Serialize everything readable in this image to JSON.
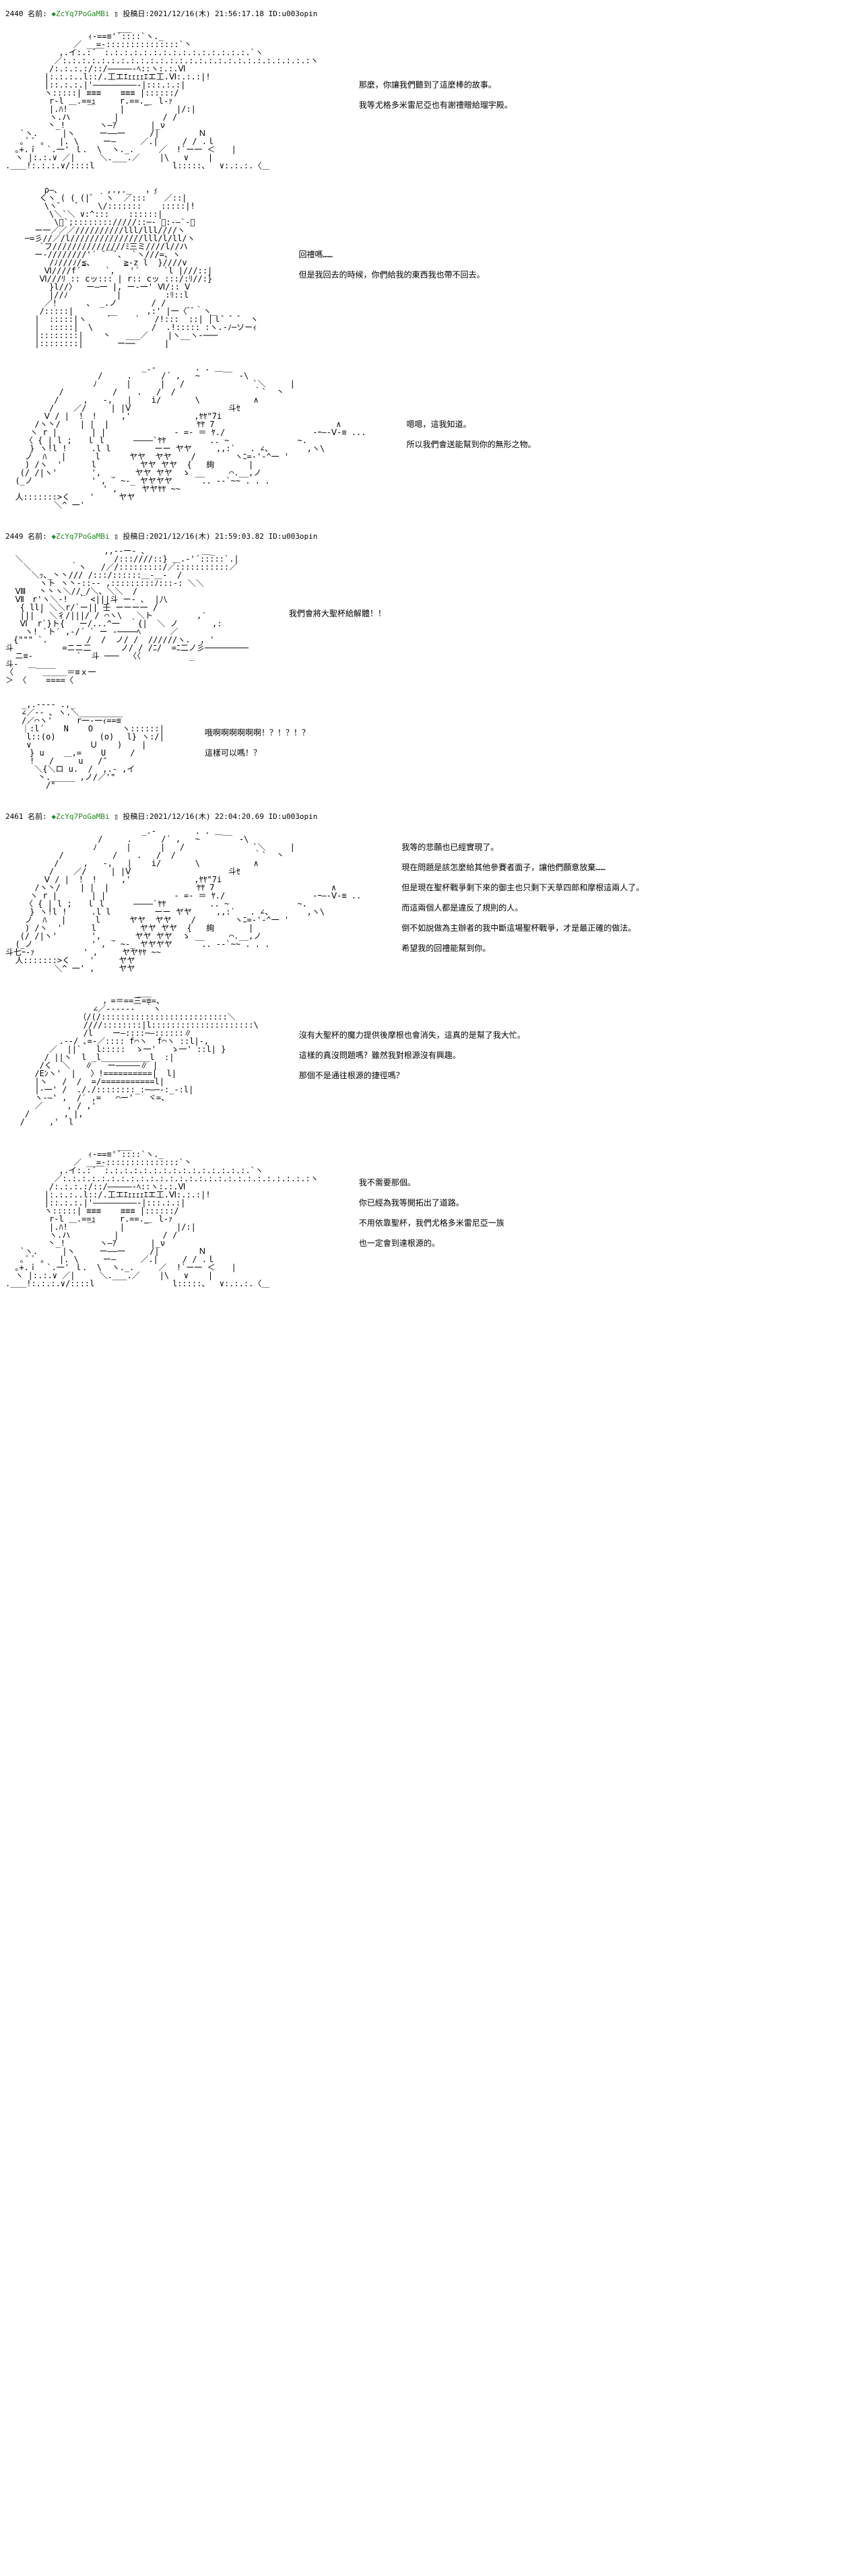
{
  "posts": [
    {
      "num": "2440",
      "name_label": "名前:",
      "trip": "◆ZcYq7PoGaMBi",
      "date_label": "投稿日:",
      "date": "2021/12/16(木) 21:56:17.18",
      "id_label": "ID:",
      "id": "u003opin"
    },
    {
      "num": "2449",
      "name_label": "名前:",
      "trip": "◆ZcYq7PoGaMBi",
      "date_label": "投稿日:",
      "date": "2021/12/16(木) 21:59:03.82",
      "id_label": "ID:",
      "id": "u003opin"
    },
    {
      "num": "2461",
      "name_label": "名前:",
      "trip": "◆ZcYq7PoGaMBi",
      "date_label": "投稿日:",
      "date": "2021/12/16(木) 22:04:20.69",
      "id_label": "ID:",
      "id": "u003opin"
    }
  ],
  "dialogues": {
    "d1": {
      "l1": "那麼，你讓我們聽到了這麼棒的故事。",
      "l2": "我等尤格多米雷尼亞也有謝禮贈給瑠宇殿。"
    },
    "d2": {
      "l1": "回禮嗎……",
      "l2": "但是我回去的時候，你們給我的東西我也帶不回去。"
    },
    "d3": {
      "l1": "嗯嗯，這我知道。",
      "l2": "所以我們會送能幫到你的無形之物。"
    },
    "d4": {
      "l1": "我們會將大聖杯給解體！！"
    },
    "d5": {
      "l1": "哦啊啊啊啊啊啊！？！？！？",
      "l2": "這樣可以嗎！？"
    },
    "d6": {
      "l1": "我等的悲願也已經實現了。",
      "l2": "現在問題是該怎麼給其他參賽者面子，讓他們願意放棄……",
      "l3": "但是現在聖杯戰爭剩下來的御主也只剩下天草四郎和摩根這兩人了。",
      "l4": "而這兩個人都是違反了規則的人。",
      "l5": "倒不如說做為主辦者的我中斷這場聖杯戰爭，才是最正確的做法。",
      "l6": "希望我的回禮能幫到你。"
    },
    "d7": {
      "l1": "沒有大聖杯的魔力提供後摩根也會消失，這真的是幫了我大忙。",
      "l2": "這樣的真沒問題嗎？雖然我對根源沒有興趣。",
      "l3": "那個不是通往根源的捷徑嗎？"
    },
    "d8": {
      "l1": "我不需要那個。",
      "l2": "你已經為我等開拓出了道路。",
      "l3": "不用依靠聖杯，我們尤格多米雷尼亞一族",
      "l4": "也一定會到達根源的。"
    }
  },
  "aa": {
    "dalnic1": "                       ___\n                 ｨ-==≡'´::::`ヽ._\n              ／ __=-:::::::::::::::`丶\n           ,.イ:.:´￣:.:.:.:.:.:.:.:.:.:.:.:.:.:.:.`ヽ\n          ／:.:.:.:.:.:.:.:.:.:.:.:.:.:.:.:.:.:.:.:.:.:.:.:.:.:ヽ\n         /:.:.:.:/::/―――――‐ﾍ::ヽ:.:.Ⅵ\n        |:.:.:..l::/.工エｴｪｪｪｪｴエ工.Ⅵ:.:.:|!\n        |::.:.:.|'―――――――――‐|:::.:.:|\n        ヽ:::::| ≡≡≡    ≡≡≡ |::::::/\n         r‐l ＿.==ｭ     r.==._  l‐ｧ\n         |.ﾊ!    ￣     |    ￣     |/:|\n         ヽ.ハ         |         / /\n   　    丶_!       ヽ―ｱ       |_ν\n   `ヽ.     |ヽ     ー――一     /|        Ｎ\n   ｡ ﾞ ﾞ ｡   |. \\     ー―     ／.|     / / .ｌ\n  ｡+.ｉ  `.一' ｌ.  \\  ヽ._.     ／  !`ー一 ＜　　|\n  ヽ |:.:.∨ ／|     ＼.___.／    |\\   ∨    |\n.＿＿!:.:.:.∨/::::l                l:::::、  ∨:.:.:.〈＿",
    "ruu1": "        ρ―､          ,.,._   ，ｨ\n       くヽ ( ( (|゛｀ヽ  ／::: ｀ ／::|\n        \\ヽ゛  ゛   \\/:::::::    :::::|!\n         \\＼`＼ ∨:^:::    ::::::|\n          \\ﾞ`;:::::::://///::─- ､:-―`-＼\n      ー一／／／//////////lll/lll////ヽ\n    ─=彡//／/l///////////////lll/l/ll/ヽ\n       `フ///////////////ﾐ三ミ////l//ハ\n      ー-////////'´ ̄ ￣ﾞ､  `ヽ///=、ヽ\n         /ﾉ///ﾉ/≦、      ≧-z l  }////v\n        Ⅵ////f´     `,   '´     `l |///::|\n       Ⅵ///ﾘ :: cッ::: | r:: cッ :::/:ﾘ//:}\n         }l//〉  ー―一 |, ー-一' Ⅵ/:: Ⅴ\n         |//ﾉ          |         :ﾘ::l\n        ／!      、 _.ノ       / /\n       /:::::|       __      ,:' |一〈ﾞﾞ｀ヽ_\n      |  :::::|ヽ    ´     `   /!:::  ::| │ｌ゛゛゛ ヽ\n      |  :::::|  \\            /  .!::::: :ヽ.-ﾉ─ソーｨ\n      |::::::::|    丶   ___／    |ヽ__ヽ-───\n      |::::::::|       ー──      |",
    "dalnic2": "                            _.-        . . ＿__\n                   /     .      /´ ,   ~        -\\\n                  ﾉ      |      |   /              `＼     |\n           /          /    .   /  /                ｀`  丶\n          /     ,   -,   |    i/       \\           ∧\n         /    ／/     | |Ⅴ                    斗ｾ\n        Ⅴ / |  ！ !     ,'             ,ﾔﾔ\"7i\n      /ヽ丶/    | |  |                  ﾔﾔ 7                         ∧\n     ヽ r |       | |              - =- ＝ ﾔ./                  -ｰ―-Ⅴ-≡ ...\n    〈 { | l ;   ｌ l      ――――`ﾔﾔ         .. ~              ~.\n     } ヽ!l !     .l l         ーー ヤヤ     ,,:`   . ∠、       ,ヽ\\\n    ノ  ﾊ   |      l      ヤヤ  ヤヤ    /        ヽﾆ=-'-^一 '\n    ) /ヽ  '      l         ヤヤ ヤヤ  {   絢       |\n   (/ /|ヽ'       ',  _    ヤヤ ヤヤ  ゝ __     ⌒.__,ノ\n  (_ノ            ' , ´ ~-_ ヤヤヤヤ      .. --`~~ . . .\n                    ' ,     ヤヤﾔﾔ ~~\n  人:::::::>く    '     ヤヤ\n          ＼^ 一'",
    "dalnic3": "  　　　　　　　　　　　,,--ー- ､　　　　　　　＿_\n  ＼　                 /:::////::} ＿.-'´:::::`.|\n  　＼        ｀ヽ   /／/:::::::::/／:::::::::::／\n  　　＼ｯ､_丶丶/// /:::/::::::＿-＿-  /\n  　　　ヽト ヽ丶-::-- ,:::::::::ﾉ:::-: ＼＼\n  Ⅷ　 丶丶ヽ＼//_/＼、＼＼  /\n  Ⅶ　r'ヽ＼-!  ｀ <|||斗 ー- ､  |八\n   { ll| ＼＼r/`ー|| 壬 ーーー一 /\n   ||| ` ＼彳/|||/ / ⌒ヽ\\   ＼ト         ,′\n   Ⅵ  r`}ト{   ー/...^一  ｀{|  ＼ ノ       ,:\n    ヽ! `ト′ ,-/´ ` ー -────ﾍ      ／\n　{\"\"\" `.        /  /  ノ/ /  //////ヽ.  , '\n斗          =ニニ二      ノ/ / /ﾆ/  =ﾆ二ノ彡─────────\n  ニ≡-         `  斗 ───  〈〈          _\n斗‐  ＿____\n〈      ＿＿＿＝≡ｘ一\n＞ 〈    ====〈",
    "ruu2": "　　_,.---- .,_\n　　∠／-- ､ ヽ.＼_________\n　　/／⌒ヽ'     r一-一ｨ==≡\n　　｜:l´    N    O      ヽ::::::|\n　　 l::(o)         (o)　 l} ヽ:/|\n　　 ∨            Ｕ    )    |\n　　　} u    ＿,=    U     /\n　　　!   /     u   /″\n　　　 ＼{＼ロ u.  /  ,.- ,イ\n　　　　丶._____ ,ノ/／'\"\n　　　　　/\"",
    "dalnic4": "                            _.-        . . ＿__\n                   /     .      /´ ,   ~        -\\\n                  ﾉ      |      |   /              `＼     |\n           /          /    .   /  /                ｀`  丶\n          /     ,   -,   |    i/       \\           ∧\n         /    ／/     | |Ⅴ                    斗ｾ\n        Ⅴ / |  ！ !     ,'             ,ﾔﾔ\"7i\n      /ヽ丶/    | |  |                  ﾔﾔ 7                        ∧\n     ヽ r |       | |              - =- ＝ ﾔ./                  -ｰ―-Ⅴ-≡ ..\n    〈 { | l ;   ｌ l      ――――`ﾔﾔ         .. ~              ~.\n     } ヽ!l !     .l l         ーー ヤヤ     ,,:`   . ∠、       ,ヽ\\\n    ノ  ﾊ   |      l      ヤヤ  ヤヤ    /        ヽﾆ=-'-^一 '\n    ) /ヽ  '      l         ヤヤ ヤヤ  {   絢       |\n   (/ /|ヽ'       ',  _    ヤヤ ヤヤ  ゝ __     ⌒.__,ノ\n  (_ノ            ' , ´ ~-_ ヤヤヤヤ      .. --`~~ . . .\n斗七ｰ-ｧ          ' ,     ヤヤﾔﾔ ~~\n  人:::::::>く    '     ヤヤ\n          ＼^ 一' ,     ヤヤ",
    "ruu3": "                           ___\n                    ，=＝==三=≡=、\n                  ∠／------  ｀ヽ\n               （/(/::::::::::::::::::::::::::＼\n                ////::::::::|l:::::::::::::::::::::\\\n                /l    ー―::::─―::::::∥\n           .--/ ､=-／:::: f⌒ヽ  f⌒ヽ ::l|-,\n         ／  ||`   l:::::  ゝ一'   ゝ一' ::l| }\n        / ||ヽ  l _l__________l  :|\n       /く  ＼   ∥   ー―――――∥ |\n      /Eﾝヽ'  |   〉!==========|  l|\n      |ヽ   /  /  =/===========l|\n      |-一' /  ././::::::::_:─―─‐:_-:l|\n      ヽ-―' ,  /′ ,=   ⌒ー'   ヾ=、\n      ／     , / ,'\n    /       , |,\n   /     ,'  l",
    "dalnic5": "                       ___\n                 ｨ-==≡'´::::`ヽ._\n              ／ __=-:::::::::::::::`丶\n           ,.イ:.:´￣:.:.:.:.:.:.:.:.:.:.:.:.:.:.:.`ヽ\n          ／:.:.:.:.:.:.:.:.:.:.:.:.:.:.:.:.:.:.:.:.:.:.:.:.:.:ヽ\n         /:.:.:.:/::/―――――‐ﾍ::ヽ:.:.Ⅵ\n        |:.:.:..l::/.工エｴｪｪｪｪｴエ工.Ⅵ:.:.:|!\n        |::.:.:.|'―――――――――‐|:::.:.:|\n        ヽ:::::| ≡≡≡    ≡≡≡ |::::::/\n         r‐l ＿.==ｭ     r.==._  l‐ｧ\n         |.ﾊ!    ￣     |    ￣     |/:|\n         ヽ.ハ         |         / /\n   　    丶_!       ヽ―ｱ       |_ν\n   `ヽ.     |ヽ     ー――一     /|        Ｎ\n   ｡ ﾞ ﾞ ｡   |. \\     ー―     ／.|     / / .ｌ\n  ｡+.ｉ  `.一' ｌ.  \\  ヽ._.     ／  !`ー一 ＜　　|\n  ヽ |:.:.∨ ／|     ＼.___.／    |\\   ∨    |\n.＿＿!:.:.:.∨/::::l                l:::::、  ∨:.:.:.〈＿"
  }
}
